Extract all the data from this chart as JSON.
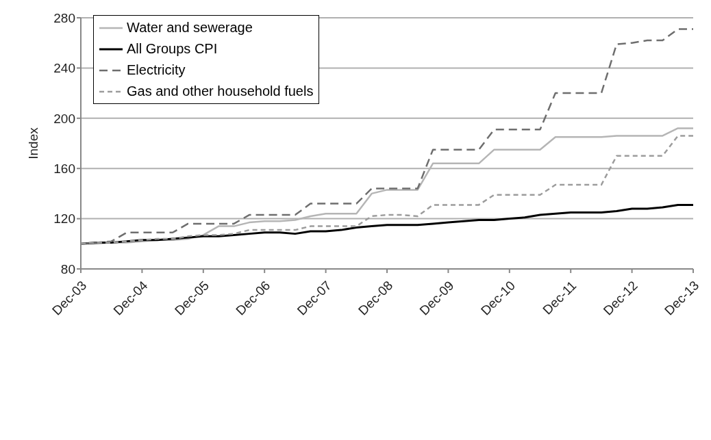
{
  "chart_data": {
    "type": "line",
    "ylabel": "Index",
    "categories": [
      "Dec-03",
      null,
      null,
      null,
      "Dec-04",
      null,
      null,
      null,
      "Dec-05",
      null,
      null,
      null,
      "Dec-06",
      null,
      null,
      null,
      "Dec-07",
      null,
      null,
      null,
      "Dec-08",
      null,
      null,
      null,
      "Dec-09",
      null,
      null,
      null,
      "Dec-10",
      null,
      null,
      null,
      "Dec-11",
      null,
      null,
      null,
      "Dec-12",
      null,
      null,
      null,
      "Dec-13"
    ],
    "series": [
      {
        "name": "Water and sewerage",
        "color": "#b5b5b5",
        "line_style": "solid",
        "values": [
          100,
          100,
          101,
          101,
          102,
          103,
          103,
          104,
          107,
          114,
          114,
          117,
          118,
          118,
          119,
          122,
          124,
          124,
          124,
          140,
          143,
          143,
          143,
          164,
          164,
          164,
          164,
          175,
          175,
          175,
          175,
          185,
          185,
          185,
          185,
          186,
          186,
          186,
          186,
          192,
          192
        ]
      },
      {
        "name": "All Groups CPI",
        "color": "#000000",
        "line_style": "solid",
        "values": [
          100,
          101,
          101,
          102,
          103,
          103,
          104,
          105,
          106,
          106,
          107,
          108,
          109,
          109,
          108,
          110,
          110,
          111,
          113,
          114,
          115,
          115,
          115,
          116,
          117,
          118,
          119,
          119,
          120,
          121,
          123,
          124,
          125,
          125,
          125,
          126,
          128,
          128,
          129,
          131,
          131
        ]
      },
      {
        "name": "Electricity",
        "color": "#6e6e6e",
        "line_style": "dashed",
        "values": [
          100,
          101,
          102,
          109,
          109,
          109,
          109,
          116,
          116,
          116,
          116,
          123,
          123,
          123,
          123,
          132,
          132,
          132,
          132,
          144,
          144,
          144,
          144,
          175,
          175,
          175,
          175,
          191,
          191,
          191,
          191,
          220,
          220,
          220,
          220,
          259,
          260,
          262,
          262,
          271,
          271
        ]
      },
      {
        "name": "Gas and other household fuels",
        "color": "#9c9c9c",
        "line_style": "dotted",
        "values": [
          100,
          101,
          101,
          102,
          103,
          104,
          104,
          106,
          107,
          107,
          108,
          111,
          111,
          111,
          111,
          114,
          114,
          114,
          114,
          122,
          123,
          123,
          122,
          131,
          131,
          131,
          131,
          139,
          139,
          139,
          139,
          147,
          147,
          147,
          147,
          170,
          170,
          170,
          170,
          186,
          186
        ]
      }
    ],
    "ylim": [
      80,
      280
    ],
    "yticks": [
      80,
      120,
      160,
      200,
      240,
      280
    ],
    "grid": "y",
    "legend": "top left",
    "marker": "none"
  }
}
